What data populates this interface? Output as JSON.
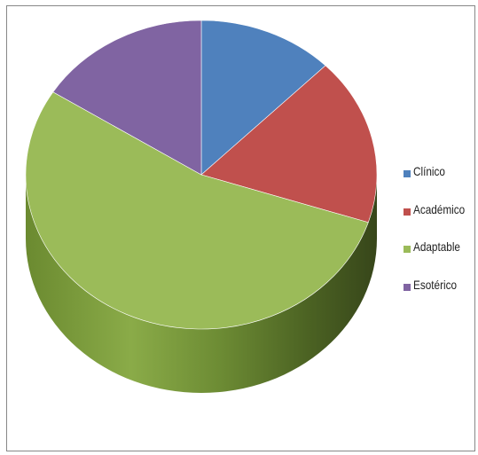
{
  "chart_data": {
    "type": "pie",
    "style": "3d",
    "categories": [
      "Clínico",
      "Académico",
      "Adaptable",
      "Esotérico"
    ],
    "values": [
      12.5,
      17.5,
      54,
      16
    ],
    "colors": [
      "#4f81bd",
      "#c0504d",
      "#9bbb59",
      "#8064a2"
    ],
    "legend_position": "right"
  }
}
